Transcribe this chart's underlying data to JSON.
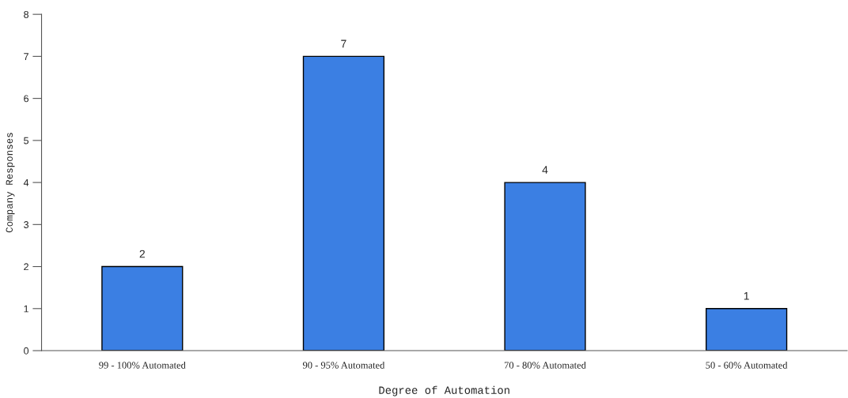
{
  "chart_data": {
    "type": "bar",
    "xlabel": "Degree of Automation",
    "ylabel": "Company Responses",
    "categories": [
      "99 - 100% Automated",
      "90 - 95% Automated",
      "70 - 80% Automated",
      "50 - 60% Automated"
    ],
    "values": [
      2,
      7,
      4,
      1
    ],
    "color": "#3b7fe3",
    "data_labels": true,
    "ylim": [
      0,
      8
    ],
    "yticks": [
      0,
      1,
      2,
      3,
      4,
      5,
      6,
      7,
      8
    ],
    "grid": false,
    "legend": false
  }
}
